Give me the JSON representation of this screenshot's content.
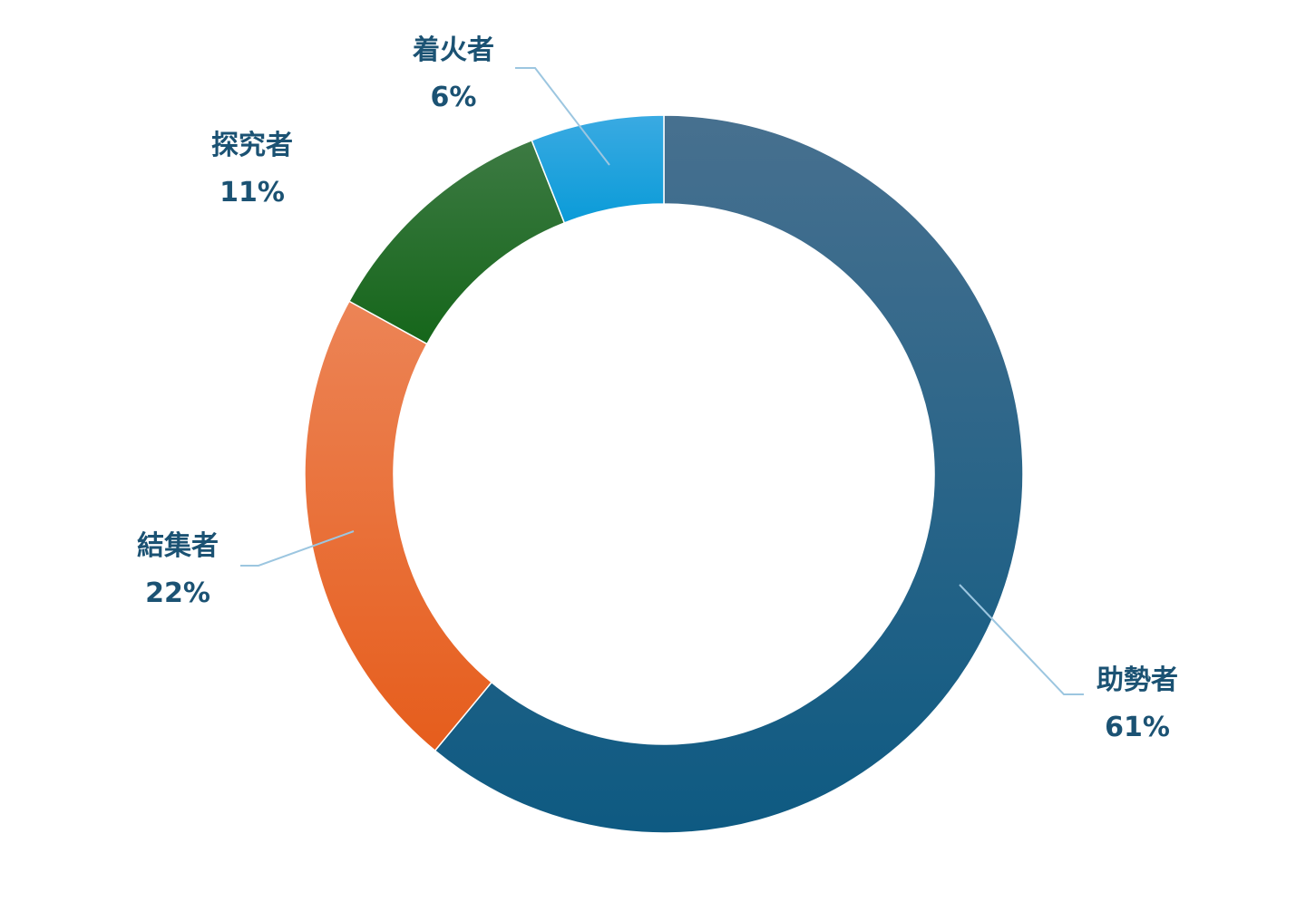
{
  "chart_data": {
    "type": "pie",
    "variant": "donut",
    "title": "",
    "slices": [
      {
        "label": "助勢者",
        "value": 61,
        "value_label": "61%",
        "color": "#0e5a82",
        "color_light": "#47708f"
      },
      {
        "label": "結集者",
        "value": 22,
        "value_label": "22%",
        "color": "#e65d1c",
        "color_light": "#ec8456"
      },
      {
        "label": "探究者",
        "value": 11,
        "value_label": "11%",
        "color": "#15661a",
        "color_light": "#3d7a43"
      },
      {
        "label": "着火者",
        "value": 6,
        "value_label": "6%",
        "color": "#0a9bd8",
        "color_light": "#3aaae2"
      }
    ],
    "start_angle": "top",
    "direction": "clockwise",
    "label_color": "#1b5273",
    "leader_line_color": "#9cc6e0",
    "legend": "none"
  }
}
